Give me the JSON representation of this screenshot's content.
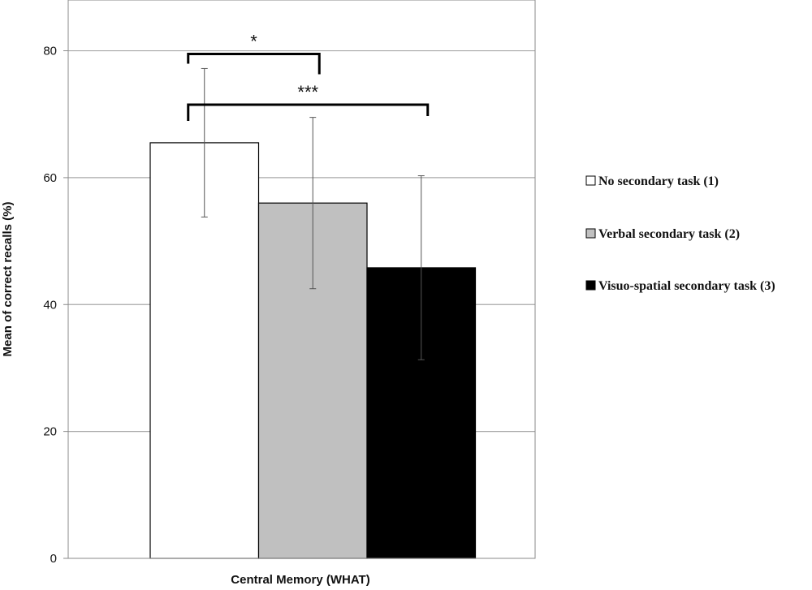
{
  "chart_data": {
    "type": "bar",
    "title": "",
    "xlabel": "Central Memory (WHAT)",
    "ylabel": "Mean of correct recalls (%)",
    "ylim": [
      0,
      88
    ],
    "yticks": [
      0,
      20,
      40,
      60,
      80
    ],
    "grid": true,
    "legend_position": "right",
    "categories": [
      "Central Memory (WHAT)"
    ],
    "series": [
      {
        "name": "No secondary task (1)",
        "values": [
          65.5
        ],
        "error": [
          11.7
        ],
        "color": "#ffffff"
      },
      {
        "name": "Verbal secondary task (2)",
        "values": [
          56
        ],
        "error": [
          13.5
        ],
        "color": "#c0c0c0"
      },
      {
        "name": "Visuo-spatial secondary task (3)",
        "values": [
          45.8
        ],
        "error": [
          14.5
        ],
        "color": "#000000"
      }
    ],
    "annotations": [
      {
        "label": "*",
        "from_series": 0,
        "to_series": 1,
        "y": 79.5
      },
      {
        "label": "***",
        "from_series": 0,
        "to_series": 2,
        "y": 71.5
      }
    ]
  }
}
